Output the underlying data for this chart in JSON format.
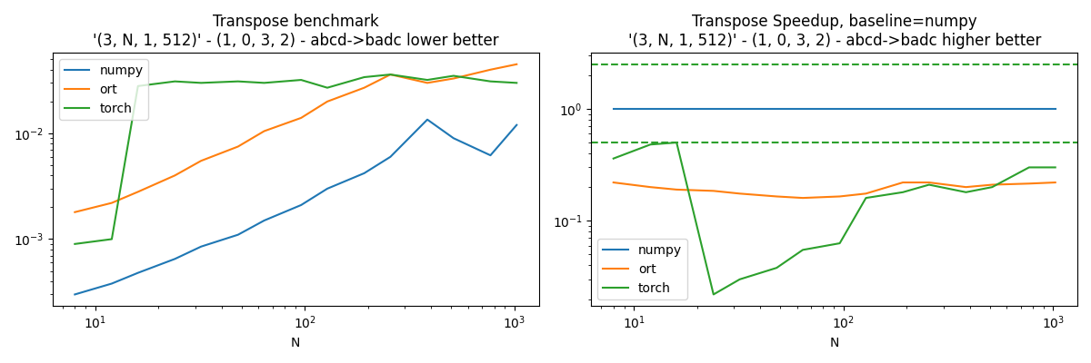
{
  "title1": "Transpose benchmark",
  "subtitle1": "'(3, N, 1, 512)' - (1, 0, 3, 2) - abcd->badc lower better",
  "title2": "Transpose Speedup, baseline=numpy",
  "subtitle2": "'(3, N, 1, 512)' - (1, 0, 3, 2) - abcd->badc higher better",
  "xlabel": "N",
  "N": [
    8,
    12,
    16,
    24,
    32,
    48,
    64,
    96,
    128,
    192,
    256,
    384,
    512,
    768,
    1024
  ],
  "numpy_time": [
    0.0003,
    0.00038,
    0.00048,
    0.00065,
    0.00085,
    0.0011,
    0.0015,
    0.0021,
    0.003,
    0.0042,
    0.006,
    0.0135,
    0.009,
    0.0062,
    0.012
  ],
  "ort_time": [
    0.0018,
    0.0022,
    0.0028,
    0.004,
    0.0055,
    0.0075,
    0.0105,
    0.014,
    0.02,
    0.027,
    0.036,
    0.03,
    0.033,
    0.04,
    0.045
  ],
  "torch_time": [
    0.0009,
    0.001,
    0.028,
    0.031,
    0.03,
    0.031,
    0.03,
    0.032,
    0.027,
    0.034,
    0.036,
    0.032,
    0.035,
    0.031,
    0.03
  ],
  "numpy_speedup": [
    1.0,
    1.0,
    1.0,
    1.0,
    1.0,
    1.0,
    1.0,
    1.0,
    1.0,
    1.0,
    1.0,
    1.0,
    1.0,
    1.0,
    1.0
  ],
  "ort_speedup": [
    0.22,
    0.2,
    0.19,
    0.185,
    0.175,
    0.165,
    0.16,
    0.165,
    0.175,
    0.22,
    0.22,
    0.2,
    0.21,
    0.215,
    0.22
  ],
  "torch_speedup": [
    0.36,
    0.48,
    0.5,
    0.022,
    0.03,
    0.038,
    0.055,
    0.063,
    0.16,
    0.18,
    0.21,
    0.18,
    0.2,
    0.3,
    0.3
  ],
  "torch_dashed_high": 2.5,
  "torch_dashed_low": 0.5,
  "colors": {
    "numpy": "#1f77b4",
    "ort": "#ff7f0e",
    "torch": "#2ca02c"
  }
}
